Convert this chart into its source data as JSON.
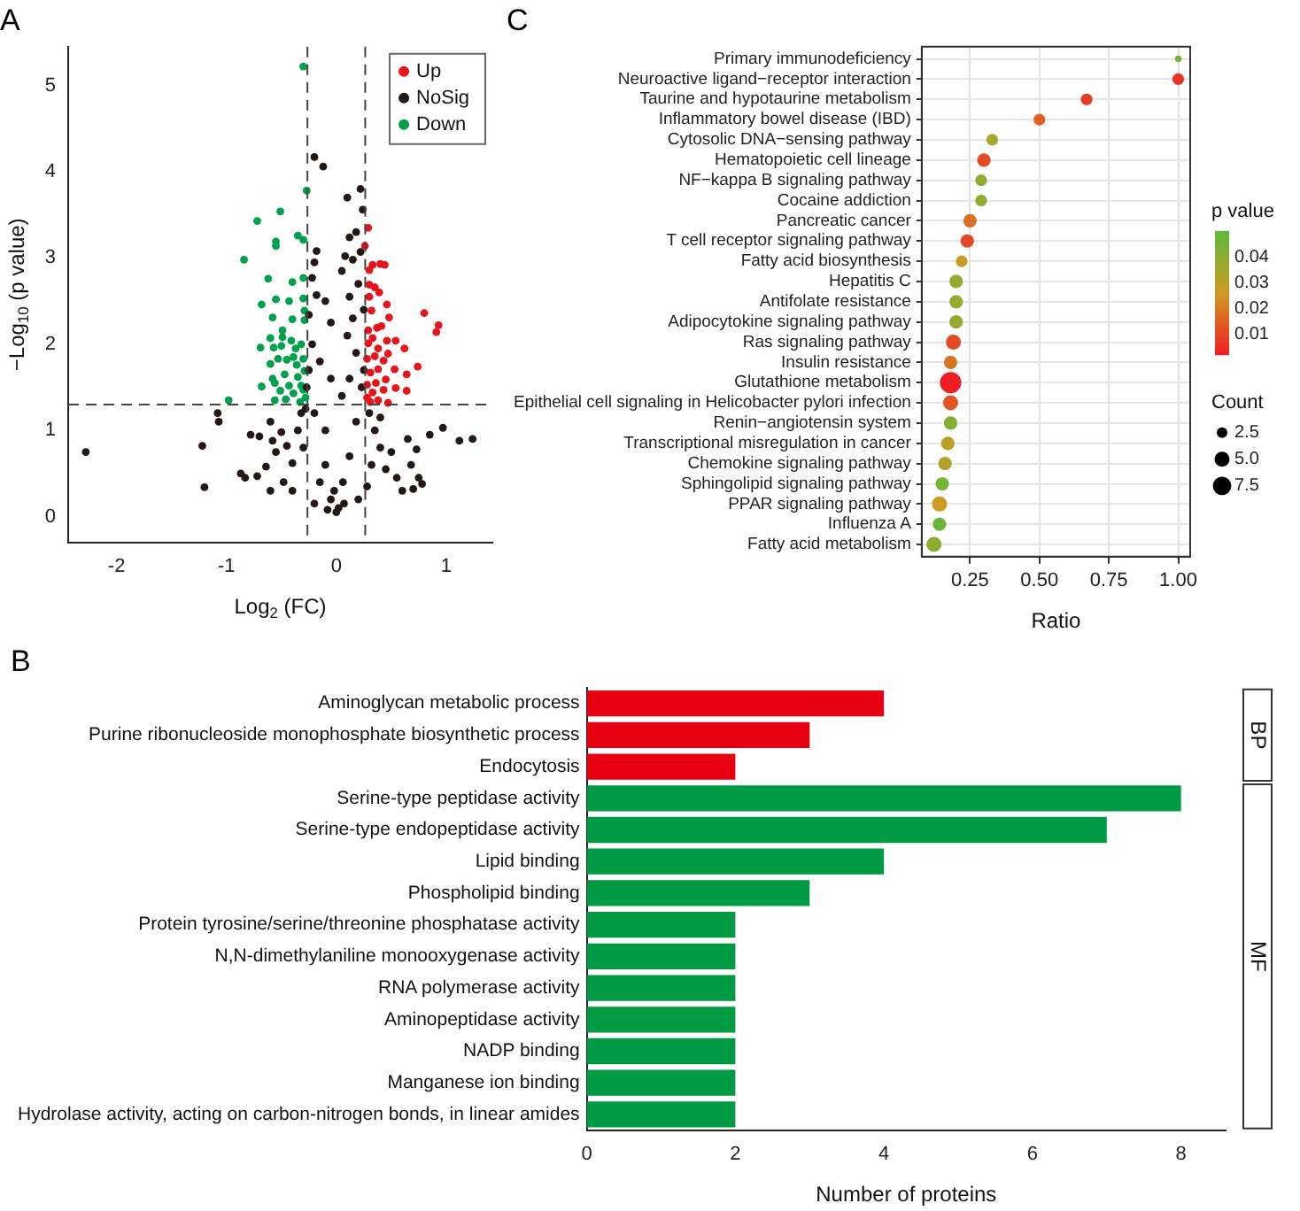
{
  "chart_data": [
    {
      "type": "scatter",
      "title": "A",
      "xlabel": "Log$_{2}$ (FC)",
      "ylabel": "−Log$_{10}$ (p value)",
      "xlim": [
        -2.44,
        1.42
      ],
      "ylim": [
        -0.3,
        5.45
      ],
      "xticks": [
        -2,
        -1,
        0,
        1
      ],
      "yticks": [
        0,
        1,
        2,
        3,
        4,
        5
      ],
      "grid": false,
      "legend": "top right",
      "marker": "circle",
      "ref_lines": [
        {
          "axis": "x",
          "value": -0.263,
          "color": "#444444",
          "line_style": "dashed"
        },
        {
          "axis": "x",
          "value": 0.263,
          "color": "#444444",
          "line_style": "dashed"
        },
        {
          "axis": "y",
          "value": 1.301,
          "color": "#444444",
          "line_style": "dashed"
        }
      ],
      "series": [
        {
          "name": "Up",
          "color": "#e8141b",
          "x": [
            0.29,
            0.26,
            0.4,
            0.33,
            0.3,
            0.44,
            0.3,
            0.35,
            0.39,
            0.3,
            0.46,
            0.32,
            0.8,
            0.93,
            0.91,
            0.48,
            0.41,
            0.37,
            0.29,
            0.33,
            0.54,
            0.46,
            0.62,
            0.29,
            0.38,
            0.47,
            0.35,
            0.28,
            0.43,
            0.74,
            0.64,
            0.53,
            0.38,
            0.31,
            0.45,
            0.36,
            0.28,
            0.54,
            0.64,
            0.43,
            0.33,
            0.28,
            0.47,
            0.38,
            0.31
          ],
          "values": [
            3.35,
            3.14,
            2.93,
            2.92,
            2.86,
            2.92,
            2.69,
            2.66,
            2.6,
            2.55,
            2.46,
            2.39,
            2.36,
            2.22,
            2.14,
            2.31,
            2.21,
            2.19,
            2.16,
            2.07,
            2.04,
            2.04,
            1.95,
            2.01,
            1.95,
            1.89,
            1.86,
            1.83,
            1.81,
            1.74,
            1.65,
            1.71,
            1.71,
            1.67,
            1.59,
            1.55,
            1.53,
            1.49,
            1.46,
            1.47,
            1.44,
            1.38,
            1.32,
            1.35,
            1.33
          ]
        },
        {
          "name": "NoSig",
          "color": "#231815",
          "x": [
            -2.28,
            -1.22,
            -1.2,
            -1.08,
            -1.07,
            -0.87,
            -0.83,
            -0.72,
            -0.64,
            -0.6,
            -0.78,
            -0.7,
            -0.58,
            -0.5,
            -0.55,
            -0.45,
            -0.4,
            -0.35,
            -0.48,
            -0.4,
            -0.2,
            -0.12,
            -0.18,
            -0.2,
            -0.22,
            -0.18,
            -0.25,
            -0.1,
            -0.05,
            0.1,
            0.22,
            0.24,
            0.18,
            0.12,
            0.22,
            0.08,
            0.15,
            0.05,
            0.2,
            0.12,
            0.25,
            0.15,
            0.1,
            0.18,
            0.25,
            0.23,
            0.12,
            0.05,
            -0.05,
            -0.15,
            -0.22,
            -0.25,
            -0.27,
            -0.28,
            -0.2,
            -0.1,
            -0.02,
            0,
            0.02,
            -0.05,
            0.06,
            -0.1,
            0.12,
            0.18,
            0.3,
            0.35,
            0.4,
            0.5,
            0.45,
            0.55,
            0.6,
            0.7,
            0.68,
            0.75,
            0.65,
            0.73,
            0.78,
            0.85,
            0.97,
            1.12,
            1.24,
            0.32,
            -0.3,
            -0.32,
            -0.15,
            0.2,
            -0.2,
            0.28,
            0.4,
            -0.6,
            0.07,
            -0.08
          ],
          "values": [
            0.75,
            0.82,
            0.34,
            1.2,
            1.1,
            0.5,
            0.45,
            0.47,
            0.58,
            0.3,
            0.95,
            0.93,
            0.88,
            0.98,
            0.75,
            0.82,
            0.62,
            1.0,
            0.4,
            0.3,
            4.17,
            4.06,
            3.08,
            2.95,
            2.77,
            2.57,
            2.34,
            2.5,
            2.25,
            3.7,
            3.8,
            3.56,
            3.3,
            3.24,
            3.07,
            3.02,
            2.98,
            2.85,
            2.7,
            2.55,
            2.4,
            2.3,
            2.1,
            1.9,
            1.7,
            1.5,
            1.6,
            1.4,
            1.6,
            1.8,
            2.0,
            1.7,
            1.5,
            1.25,
            1.2,
            1.0,
            0.3,
            0.05,
            0.1,
            0.2,
            0.4,
            0.6,
            0.7,
            1.1,
            1.2,
            1.0,
            0.8,
            0.75,
            0.55,
            0.45,
            0.3,
            0.32,
            0.6,
            0.45,
            0.9,
            0.78,
            0.38,
            0.95,
            1.03,
            0.88,
            0.9,
            0.6,
            0.8,
            1.2,
            0.4,
            0.2,
            0.15,
            0.35,
            1.15,
            1.1,
            0.15,
            0.08
          ]
        },
        {
          "name": "Down",
          "color": "#00a14b",
          "x": [
            -0.3,
            -0.27,
            -0.51,
            -0.72,
            -0.35,
            -0.3,
            -0.55,
            -0.55,
            -0.84,
            -0.62,
            -0.4,
            -0.3,
            -0.55,
            -0.43,
            -0.3,
            -0.68,
            -0.29,
            -0.58,
            -0.4,
            -0.29,
            -0.49,
            -0.6,
            -0.49,
            -0.41,
            -0.69,
            -0.57,
            -0.5,
            -0.37,
            -0.32,
            -0.53,
            -0.45,
            -0.39,
            -0.3,
            -0.6,
            -0.36,
            -0.58,
            -0.47,
            -0.35,
            -0.29,
            -0.68,
            -0.56,
            -0.43,
            -0.32,
            -0.51,
            -0.39,
            -0.3,
            -0.98,
            -0.56,
            -0.46,
            -0.33,
            -0.28
          ],
          "values": [
            5.22,
            3.78,
            3.54,
            3.43,
            3.26,
            3.21,
            3.19,
            3.14,
            2.98,
            2.76,
            2.72,
            2.77,
            2.52,
            2.5,
            2.53,
            2.46,
            2.39,
            2.31,
            2.29,
            2.28,
            2.16,
            2.07,
            2.08,
            2.04,
            1.96,
            1.96,
            1.98,
            1.95,
            2.0,
            1.83,
            1.82,
            1.85,
            1.83,
            1.77,
            1.76,
            1.6,
            1.65,
            1.62,
            1.69,
            1.51,
            1.55,
            1.52,
            1.52,
            1.46,
            1.43,
            1.47,
            1.35,
            1.35,
            1.36,
            1.33,
            1.38
          ]
        }
      ]
    },
    {
      "type": "bubble",
      "title": "C",
      "orientation": "horizontal",
      "xlabel": "Ratio",
      "clabel": "p value",
      "legend_title": "Count",
      "grid": true,
      "categories": [
        "Primary immunodeficiency",
        "Neuroactive ligand−receptor interaction",
        "Taurine and hypotaurine metabolism",
        "Inflammatory bowel disease (IBD)",
        "Cytosolic DNA−sensing pathway",
        "Hematopoietic cell lineage",
        "NF−kappa B signaling pathway",
        "Cocaine addiction",
        "Pancreatic cancer",
        "T cell receptor signaling pathway",
        "Fatty acid biosynthesis",
        "Hepatitis C",
        "Antifolate resistance",
        "Adipocytokine signaling pathway",
        "Ras signaling pathway",
        "Insulin resistance",
        "Glutathione metabolism",
        "Epithelial cell signaling in Helicobacter pylori infection",
        "Renin−angiotensin system",
        "Transcriptional misregulation in cancer",
        "Chemokine signaling pathway",
        "Sphingolipid signaling pathway",
        "PPAR signaling pathway",
        "Influenza A",
        "Fatty acid metabolism"
      ],
      "values": [
        1.0,
        1.0,
        0.67,
        0.5,
        0.33,
        0.3,
        0.29,
        0.29,
        0.25,
        0.24,
        0.22,
        0.2,
        0.2,
        0.2,
        0.19,
        0.18,
        0.18,
        0.18,
        0.18,
        0.17,
        0.16,
        0.15,
        0.14,
        0.14,
        0.12
      ],
      "sizes": [
        1,
        3,
        3,
        3,
        3,
        4,
        3,
        3,
        4,
        4,
        3,
        4,
        4,
        4,
        5,
        4,
        10,
        5,
        4,
        4,
        4,
        4,
        5,
        4,
        5
      ],
      "cvalues": [
        0.045,
        0.006,
        0.008,
        0.015,
        0.035,
        0.011,
        0.04,
        0.04,
        0.018,
        0.01,
        0.028,
        0.038,
        0.038,
        0.038,
        0.011,
        0.019,
        0.002,
        0.013,
        0.042,
        0.03,
        0.032,
        0.045,
        0.027,
        0.048,
        0.04
      ],
      "xlim": [
        0.076,
        1.043
      ],
      "xticks": [
        {
          "value": 0.25,
          "label": "0.25"
        },
        {
          "value": 0.5,
          "label": "0.50"
        },
        {
          "value": 0.75,
          "label": "0.75"
        },
        {
          "value": 1,
          "label": "1.00"
        }
      ],
      "clim": [
        0.0018,
        0.0503
      ],
      "cticks": [
        0.01,
        0.02,
        0.03,
        0.04
      ],
      "size_legend": [
        {
          "value": 2.5,
          "label": "2.5"
        },
        {
          "value": 5,
          "label": "5.0"
        },
        {
          "value": 7.5,
          "label": "7.5"
        }
      ]
    },
    {
      "type": "bar",
      "title": "B",
      "orientation": "horizontal",
      "xlabel": "Number of proteins",
      "grid": false,
      "categories": [
        "Aminoglycan metabolic process",
        "Purine ribonucleoside monophosphate biosynthetic process",
        "Endocytosis",
        "Serine-type peptidase activity",
        "Serine-type endopeptidase activity",
        "Lipid binding",
        "Phospholipid binding",
        "Protein tyrosine/serine/threonine phosphatase activity",
        "N,N-dimethylaniline monooxygenase activity",
        "RNA polymerase activity",
        "Aminopeptidase activity",
        "NADP binding",
        "Manganese ion binding",
        "Hydrolase activity, acting on carbon-nitrogen bonds, in linear amides"
      ],
      "values": [
        4,
        3,
        2,
        8,
        7,
        4,
        3,
        2,
        2,
        2,
        2,
        2,
        2,
        2
      ],
      "colors": [
        "#e60012",
        "#e60012",
        "#e60012",
        "#009944",
        "#009944",
        "#009944",
        "#009944",
        "#009944",
        "#009944",
        "#009944",
        "#009944",
        "#009944",
        "#009944",
        "#009944"
      ],
      "xlim": [
        0,
        8.6
      ],
      "xticks": [
        0,
        2,
        4,
        6,
        8
      ],
      "annotations": [
        "BP",
        "MF"
      ]
    }
  ]
}
